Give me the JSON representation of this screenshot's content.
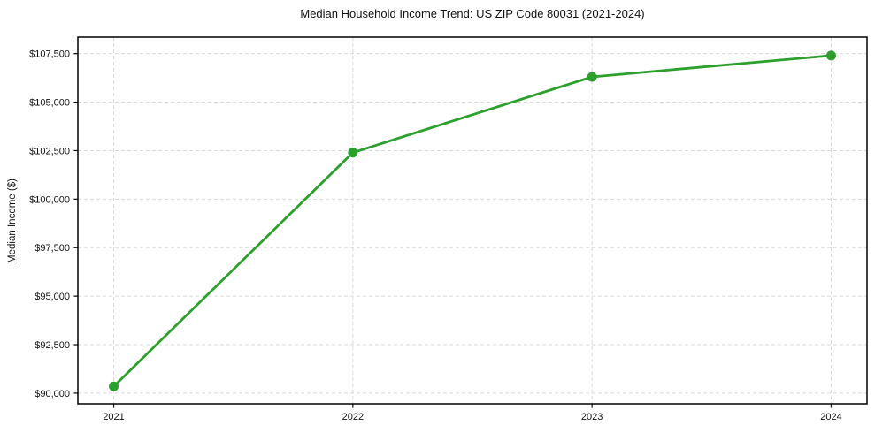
{
  "chart_data": {
    "type": "line",
    "title": "Median Household Income Trend: US ZIP Code 80031 (2021-2024)",
    "xlabel": "",
    "ylabel": "Median Income ($)",
    "x": [
      2021,
      2022,
      2023,
      2024
    ],
    "x_tick_labels": [
      "2021",
      "2022",
      "2023",
      "2024"
    ],
    "series": [
      {
        "name": "Median Household Income",
        "values": [
          90350,
          102400,
          106300,
          107400
        ]
      }
    ],
    "y_ticks": [
      90000,
      92500,
      95000,
      97500,
      100000,
      102500,
      105000,
      107500
    ],
    "y_tick_labels": [
      "$90,000",
      "$92,500",
      "$95,000",
      "$97,500",
      "$100,000",
      "$102,500",
      "$105,000",
      "$107,500"
    ],
    "xlim": [
      2020.85,
      2024.15
    ],
    "ylim": [
      89450,
      108350
    ],
    "grid": true,
    "grid_style": "dashed",
    "legend_position": "none",
    "colors": {
      "line": "#2ca02c",
      "marker": "#2ca02c",
      "grid": "#d9d9d9",
      "spine": "#000000",
      "background": "#ffffff",
      "text": "#111111"
    },
    "marker": "circle",
    "marker_radius": 5.5,
    "line_width": 2.8
  }
}
